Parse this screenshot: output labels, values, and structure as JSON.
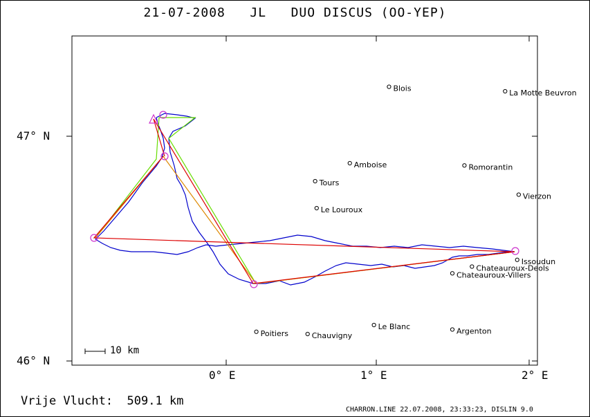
{
  "header": {
    "date": "21-07-2008",
    "pilot": "JL",
    "glider": "DUO DISCUS (OO-YEP)"
  },
  "axes": {
    "lat_labels": [
      "47° N",
      "46° N"
    ],
    "lon_labels": [
      "0° E",
      "1° E",
      "2° E"
    ]
  },
  "scale": {
    "label": "10 km"
  },
  "cities": [
    {
      "name": "Blois",
      "lon": 1.08,
      "lat": 47.22
    },
    {
      "name": "La Motte Beuvron",
      "lon": 1.85,
      "lat": 47.2
    },
    {
      "name": "Amboise",
      "lon": 0.82,
      "lat": 46.88
    },
    {
      "name": "Romorantin",
      "lon": 1.58,
      "lat": 46.87
    },
    {
      "name": "Tours",
      "lon": 0.59,
      "lat": 46.8
    },
    {
      "name": "Vierzon",
      "lon": 1.94,
      "lat": 46.74
    },
    {
      "name": "Le Louroux",
      "lon": 0.6,
      "lat": 46.68
    },
    {
      "name": "Issoudun",
      "lon": 1.93,
      "lat": 46.45
    },
    {
      "name": "Chateauroux-Deols",
      "lon": 1.63,
      "lat": 46.42
    },
    {
      "name": "Chateauroux-Villers",
      "lon": 1.5,
      "lat": 46.39
    },
    {
      "name": "Le Blanc",
      "lon": 0.98,
      "lat": 46.16
    },
    {
      "name": "Argenton",
      "lon": 1.5,
      "lat": 46.14
    },
    {
      "name": "Poitiers",
      "lon": 0.2,
      "lat": 46.13
    },
    {
      "name": "Chauvigny",
      "lon": 0.54,
      "lat": 46.12
    }
  ],
  "turnpoints": [
    {
      "lon": -0.42,
      "lat": 47.1
    },
    {
      "lon": -0.41,
      "lat": 46.92
    },
    {
      "lon": -0.87,
      "lat": 46.56
    },
    {
      "lon": 0.18,
      "lat": 46.35
    },
    {
      "lon": 1.89,
      "lat": 46.5
    }
  ],
  "colors": {
    "track": "#0000cc",
    "task": "#dd0000",
    "optimized": "#66dd00",
    "turnpoint": "#cc33cc",
    "leg_overlap": "#dd8800"
  },
  "footer": {
    "distance_label": "Vrije Vlucht:",
    "distance_value": "509.1 km",
    "program_info": "CHARRON.LINE 22.07.2008, 23:33:23, DISLIN 9.0"
  }
}
